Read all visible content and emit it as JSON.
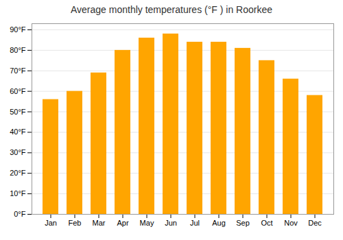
{
  "chart_data": {
    "type": "bar",
    "title": "Average monthly temperatures (°F ) in Roorkee",
    "categories": [
      "Jan",
      "Feb",
      "Mar",
      "Apr",
      "May",
      "Jun",
      "Jul",
      "Aug",
      "Sep",
      "Oct",
      "Nov",
      "Dec"
    ],
    "values": [
      56,
      60,
      69,
      80,
      86,
      88,
      84,
      84,
      81,
      75,
      66,
      58
    ],
    "color": "#FFA500",
    "ylim": [
      0,
      93
    ],
    "yticks": [
      {
        "value": 0,
        "label": "0°F"
      },
      {
        "value": 10,
        "label": "10°F"
      },
      {
        "value": 20,
        "label": "20°F"
      },
      {
        "value": 30,
        "label": "30°F"
      },
      {
        "value": 40,
        "label": "40°F"
      },
      {
        "value": 50,
        "label": "50°F"
      },
      {
        "value": 60,
        "label": "60°F"
      },
      {
        "value": 70,
        "label": "70°F"
      },
      {
        "value": 80,
        "label": "80°F"
      },
      {
        "value": 90,
        "label": "90°F"
      }
    ],
    "grid": true
  }
}
